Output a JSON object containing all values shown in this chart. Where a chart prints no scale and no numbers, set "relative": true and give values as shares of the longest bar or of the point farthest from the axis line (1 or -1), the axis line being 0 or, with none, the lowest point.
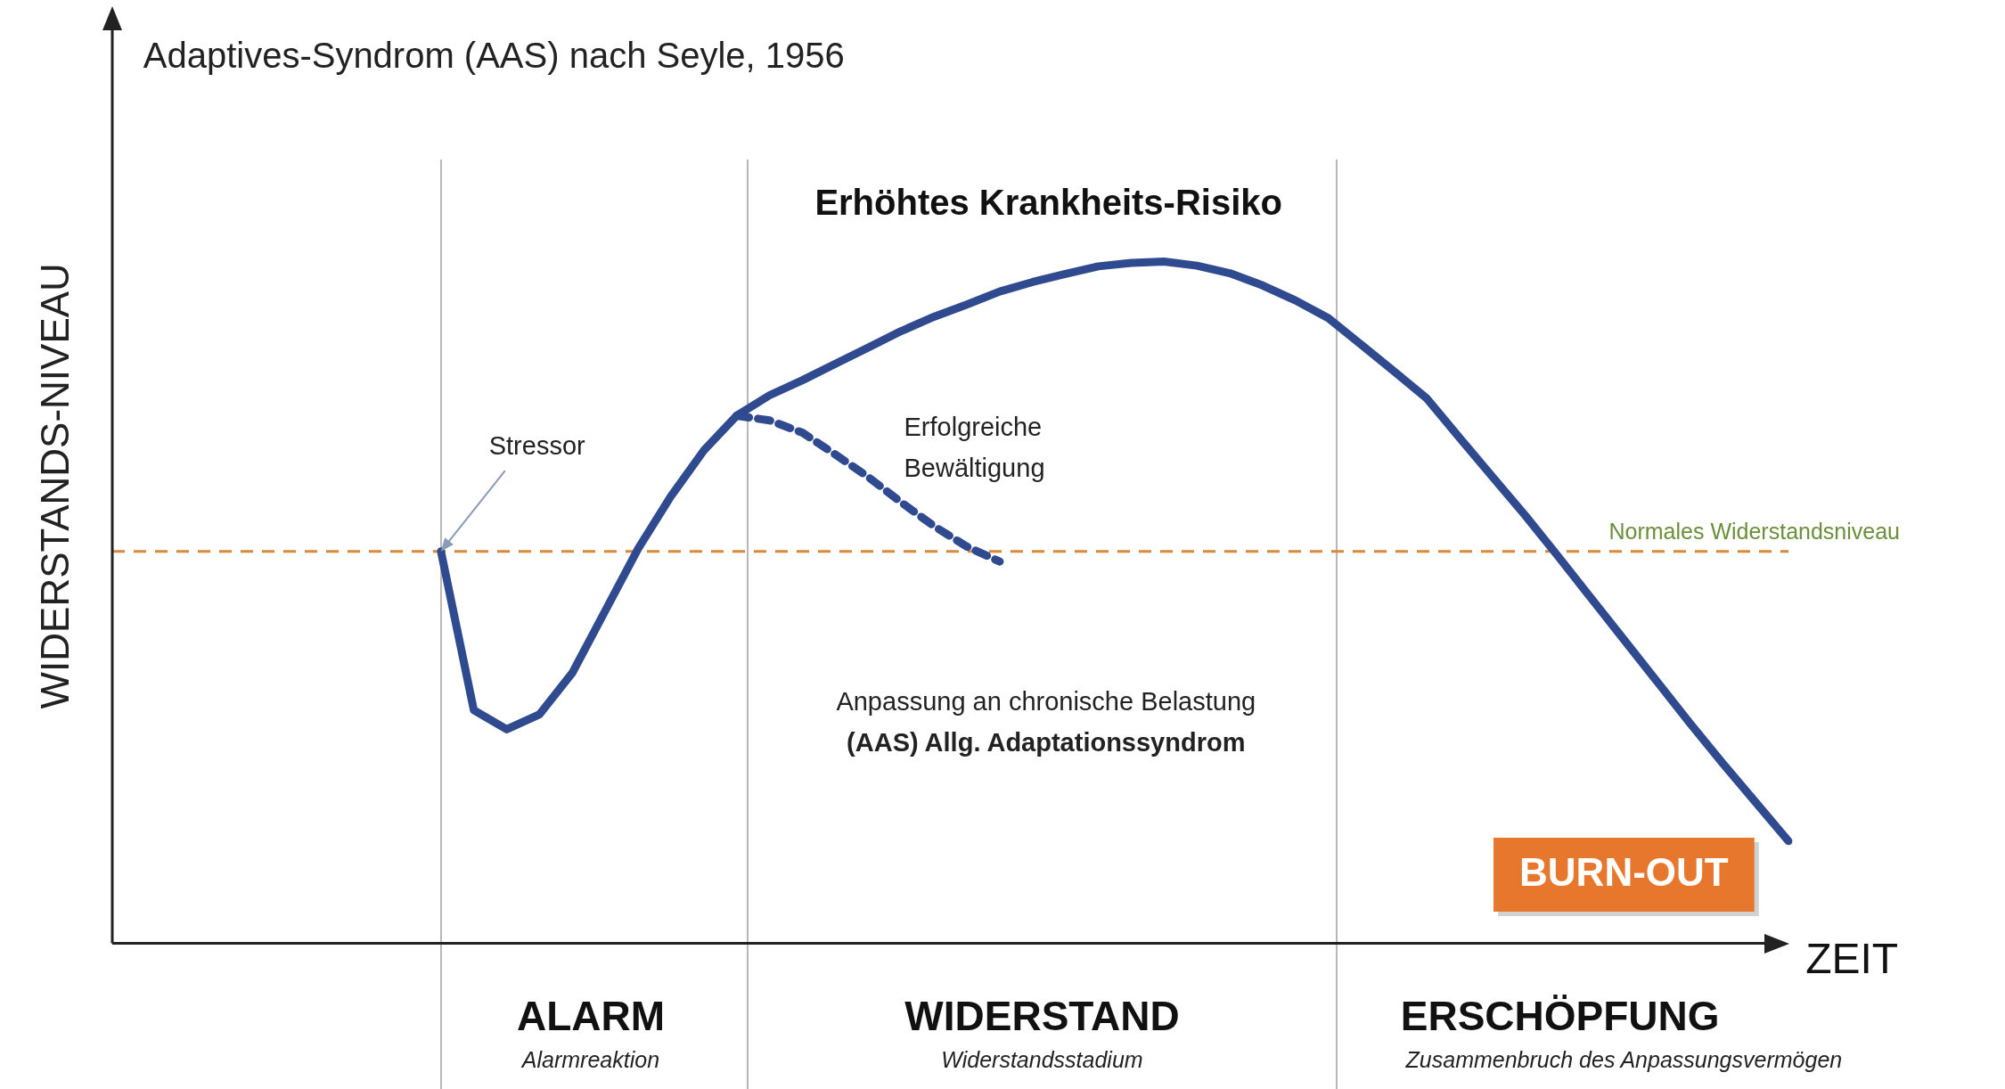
{
  "chart_data": {
    "type": "line",
    "title": "Adaptives-Syndrom (AAS) nach Seyle, 1956",
    "ylabel": "WIDERSTANDS-NIVEAU",
    "xlabel": "ZEIT",
    "relative": true,
    "grid": false,
    "legend": false,
    "marker": "none",
    "categories": [
      null,
      null,
      null,
      null,
      null,
      null,
      null,
      null,
      null,
      null,
      null,
      null,
      null,
      null,
      null,
      null,
      null,
      null,
      null,
      null,
      null,
      null,
      null,
      null,
      null,
      null,
      null,
      null,
      null,
      null,
      null,
      null,
      null,
      null,
      null,
      null,
      null,
      null,
      null,
      null,
      null,
      null,
      null,
      null,
      null,
      null,
      null,
      null,
      null,
      null,
      null,
      null
    ],
    "series": [
      {
        "color": "#2f4a8e",
        "line_style": "solid",
        "values": [
          null,
          null,
          null,
          null,
          null,
          null,
          null,
          null,
          null,
          null,
          0.575,
          0.342,
          0.314,
          0.336,
          0.397,
          0.488,
          0.579,
          0.656,
          0.723,
          0.774,
          0.804,
          0.826,
          0.85,
          0.874,
          0.898,
          0.919,
          0.937,
          0.956,
          0.97,
          0.982,
          0.993,
          0.998,
          1,
          0.994,
          0.983,
          0.965,
          0.943,
          0.917,
          0.878,
          0.839,
          0.799,
          0.741,
          0.684,
          0.627,
          0.567,
          0.506,
          0.445,
          0.384,
          0.323,
          0.264,
          0.207,
          0.15
        ]
      },
      {
        "color": "#2f4a8e",
        "line_style": "dashed",
        "values": [
          null,
          null,
          null,
          null,
          null,
          null,
          null,
          null,
          null,
          null,
          null,
          null,
          null,
          null,
          null,
          null,
          null,
          null,
          null,
          0.774,
          0.767,
          0.749,
          0.717,
          0.684,
          0.647,
          0.612,
          0.582,
          0.56,
          null,
          null,
          null,
          null,
          null,
          null,
          null,
          null,
          null,
          null,
          null,
          null,
          null,
          null,
          null,
          null,
          null,
          null,
          null,
          null,
          null,
          null,
          null,
          null
        ]
      }
    ],
    "ref_lines": [
      {
        "axis": "y",
        "value": 0.575,
        "color": "#d9893b",
        "line_style": "dashed",
        "label": "Normales Widerstandsniveau"
      }
    ],
    "annotations": [
      "Erhöhtes Krankheits-Risiko",
      "Stressor",
      "Erfolgreiche Bewältigung",
      "Anpassung an chronische Belastung",
      "(AAS) Allg. Adaptationssyndrom",
      "BURN-OUT",
      "ALARM",
      "Alarmreaktion",
      "WIDERSTAND",
      "Widerstandsstadium",
      "ERSCHÖPFUNG",
      "Zusammenbruch des Anpassungsvermögen"
    ]
  }
}
